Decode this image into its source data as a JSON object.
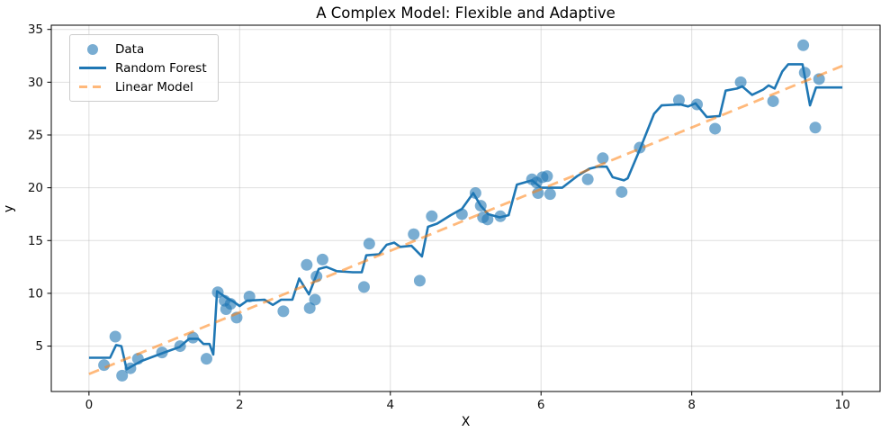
{
  "chart_data": {
    "type": "scatter",
    "title": "A Complex Model: Flexible and Adaptive",
    "xlabel": "X",
    "ylabel": "y",
    "xlim": [
      -0.5,
      10.5
    ],
    "ylim": [
      0.7,
      35.4
    ],
    "xticks": [
      0,
      2,
      4,
      6,
      8,
      10
    ],
    "yticks": [
      5,
      10,
      15,
      20,
      25,
      30,
      35
    ],
    "grid": true,
    "grid_color": "#b0b0b0",
    "grid_opacity": 0.4,
    "legend_position": "upper left",
    "series": [
      {
        "name": "Data",
        "kind": "scatter",
        "color": "#1f77b4",
        "opacity": 0.6,
        "marker_radius": 6.5,
        "points": [
          [
            0.2,
            3.2
          ],
          [
            0.35,
            5.9
          ],
          [
            0.44,
            2.2
          ],
          [
            0.55,
            2.9
          ],
          [
            0.65,
            3.8
          ],
          [
            0.97,
            4.4
          ],
          [
            1.21,
            5.0
          ],
          [
            1.38,
            5.8
          ],
          [
            1.56,
            3.8
          ],
          [
            1.71,
            10.1
          ],
          [
            1.8,
            9.3
          ],
          [
            1.82,
            8.5
          ],
          [
            1.88,
            9.0
          ],
          [
            1.96,
            7.7
          ],
          [
            2.13,
            9.7
          ],
          [
            2.58,
            8.3
          ],
          [
            2.89,
            12.7
          ],
          [
            2.93,
            8.6
          ],
          [
            3.0,
            9.4
          ],
          [
            3.02,
            11.6
          ],
          [
            3.1,
            13.2
          ],
          [
            3.65,
            10.6
          ],
          [
            3.72,
            14.7
          ],
          [
            4.31,
            15.6
          ],
          [
            4.39,
            11.2
          ],
          [
            4.55,
            17.3
          ],
          [
            4.95,
            17.5
          ],
          [
            5.13,
            19.5
          ],
          [
            5.2,
            18.3
          ],
          [
            5.23,
            17.2
          ],
          [
            5.29,
            17.0
          ],
          [
            5.46,
            17.3
          ],
          [
            5.88,
            20.8
          ],
          [
            5.94,
            20.5
          ],
          [
            5.96,
            19.5
          ],
          [
            6.02,
            21.0
          ],
          [
            6.08,
            21.1
          ],
          [
            6.12,
            19.4
          ],
          [
            6.62,
            20.8
          ],
          [
            6.82,
            22.8
          ],
          [
            7.07,
            19.6
          ],
          [
            7.31,
            23.8
          ],
          [
            7.83,
            28.3
          ],
          [
            8.07,
            27.9
          ],
          [
            8.31,
            25.6
          ],
          [
            8.65,
            30.0
          ],
          [
            9.08,
            28.2
          ],
          [
            9.48,
            33.5
          ],
          [
            9.5,
            30.9
          ],
          [
            9.64,
            25.7
          ],
          [
            9.69,
            30.3
          ]
        ]
      },
      {
        "name": "Random Forest",
        "kind": "line",
        "color": "#1f77b4",
        "opacity": 1,
        "line_width": 2.6,
        "points": [
          [
            0.0,
            3.9
          ],
          [
            0.28,
            3.9
          ],
          [
            0.36,
            5.1
          ],
          [
            0.43,
            5.0
          ],
          [
            0.5,
            2.8
          ],
          [
            0.57,
            3.1
          ],
          [
            0.7,
            3.6
          ],
          [
            1.0,
            4.4
          ],
          [
            1.2,
            4.9
          ],
          [
            1.33,
            5.7
          ],
          [
            1.45,
            5.7
          ],
          [
            1.52,
            5.2
          ],
          [
            1.6,
            5.2
          ],
          [
            1.65,
            4.2
          ],
          [
            1.7,
            10.2
          ],
          [
            1.84,
            9.5
          ],
          [
            1.92,
            9.2
          ],
          [
            2.0,
            8.8
          ],
          [
            2.1,
            9.3
          ],
          [
            2.33,
            9.4
          ],
          [
            2.44,
            8.9
          ],
          [
            2.55,
            9.4
          ],
          [
            2.7,
            9.4
          ],
          [
            2.79,
            11.4
          ],
          [
            2.92,
            9.9
          ],
          [
            3.05,
            12.3
          ],
          [
            3.15,
            12.5
          ],
          [
            3.29,
            12.1
          ],
          [
            3.5,
            12.0
          ],
          [
            3.62,
            12.0
          ],
          [
            3.68,
            13.6
          ],
          [
            3.85,
            13.7
          ],
          [
            3.95,
            14.6
          ],
          [
            4.05,
            14.8
          ],
          [
            4.13,
            14.4
          ],
          [
            4.28,
            14.5
          ],
          [
            4.42,
            13.5
          ],
          [
            4.5,
            16.3
          ],
          [
            4.62,
            16.6
          ],
          [
            4.8,
            17.4
          ],
          [
            4.95,
            18.0
          ],
          [
            5.1,
            19.5
          ],
          [
            5.2,
            18.3
          ],
          [
            5.3,
            17.5
          ],
          [
            5.45,
            17.2
          ],
          [
            5.57,
            17.4
          ],
          [
            5.68,
            20.3
          ],
          [
            5.88,
            20.7
          ],
          [
            6.0,
            20.0
          ],
          [
            6.28,
            20.0
          ],
          [
            6.48,
            21.1
          ],
          [
            6.64,
            21.8
          ],
          [
            6.75,
            22.0
          ],
          [
            6.87,
            22.0
          ],
          [
            6.95,
            21.0
          ],
          [
            7.1,
            20.7
          ],
          [
            7.15,
            20.9
          ],
          [
            7.31,
            23.6
          ],
          [
            7.5,
            27.0
          ],
          [
            7.6,
            27.8
          ],
          [
            7.85,
            27.9
          ],
          [
            7.95,
            27.7
          ],
          [
            8.05,
            28.0
          ],
          [
            8.2,
            26.7
          ],
          [
            8.37,
            26.8
          ],
          [
            8.45,
            29.2
          ],
          [
            8.6,
            29.4
          ],
          [
            8.67,
            29.6
          ],
          [
            8.8,
            28.8
          ],
          [
            8.95,
            29.3
          ],
          [
            9.02,
            29.7
          ],
          [
            9.1,
            29.4
          ],
          [
            9.2,
            31.0
          ],
          [
            9.28,
            31.7
          ],
          [
            9.47,
            31.7
          ],
          [
            9.57,
            27.8
          ],
          [
            9.65,
            29.5
          ],
          [
            10.0,
            29.5
          ]
        ]
      },
      {
        "name": "Linear Model",
        "kind": "line",
        "style": "dashed",
        "dash": [
          12,
          7
        ],
        "color": "#ff7f0e",
        "opacity": 0.55,
        "line_width": 2.8,
        "points": [
          [
            0.0,
            2.35
          ],
          [
            10.0,
            31.55
          ]
        ]
      }
    ]
  }
}
